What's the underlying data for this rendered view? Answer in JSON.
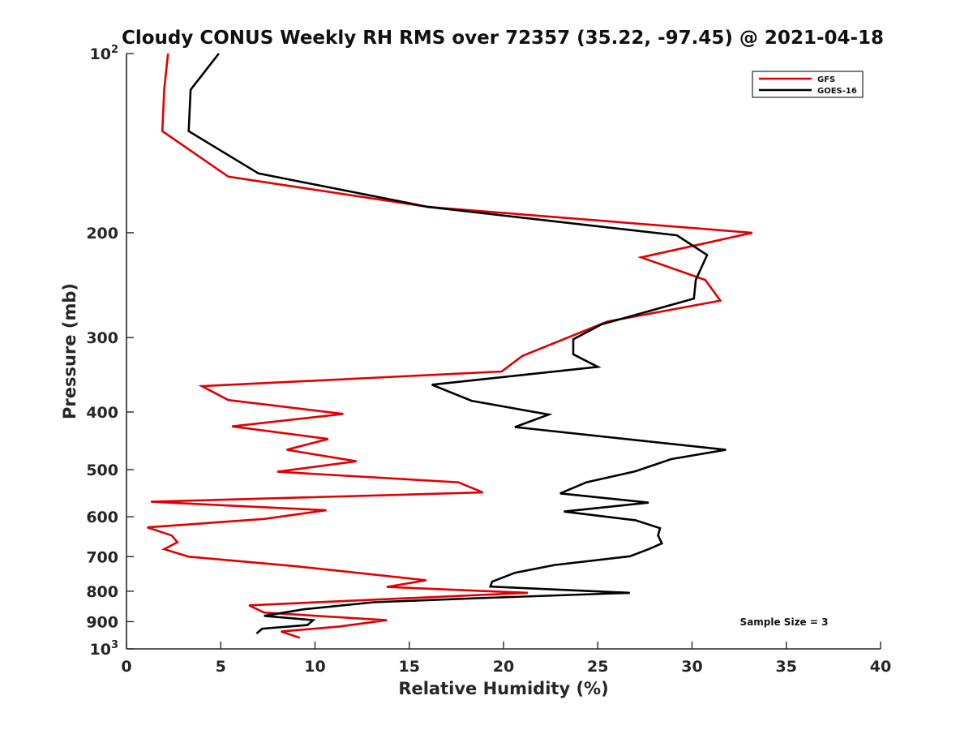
{
  "chart_data": {
    "type": "line",
    "title": "Cloudy CONUS Weekly RH RMS over 72357 (35.22, -97.45) @ 2021-04-18",
    "xlabel": "Relative Humidity (%)",
    "ylabel": "Pressure (mb)",
    "xlim": [
      0,
      40
    ],
    "ylim": [
      100,
      1000
    ],
    "y_scale": "log",
    "y_reversed": true,
    "x_ticks": [
      "0",
      "5",
      "10",
      "15",
      "20",
      "25",
      "30",
      "35",
      "40"
    ],
    "y_ticks": [
      {
        "value": 100,
        "label": "10",
        "sup": "2"
      },
      {
        "value": 200,
        "label": "200"
      },
      {
        "value": 300,
        "label": "300"
      },
      {
        "value": 400,
        "label": "400"
      },
      {
        "value": 500,
        "label": "500"
      },
      {
        "value": 600,
        "label": "600"
      },
      {
        "value": 700,
        "label": "700"
      },
      {
        "value": 800,
        "label": "800"
      },
      {
        "value": 900,
        "label": "900"
      },
      {
        "value": 1000,
        "label": "10",
        "sup": "3"
      }
    ],
    "grid": false,
    "legend_position": "top-right",
    "annotation": "Sample Size = 3",
    "series": [
      {
        "name": "GFS",
        "color": "#e00000",
        "points": [
          {
            "x": 2.2,
            "y": 100
          },
          {
            "x": 2.0,
            "y": 115
          },
          {
            "x": 1.9,
            "y": 135
          },
          {
            "x": 5.4,
            "y": 161
          },
          {
            "x": 16.0,
            "y": 181
          },
          {
            "x": 33.2,
            "y": 200
          },
          {
            "x": 27.3,
            "y": 220
          },
          {
            "x": 30.7,
            "y": 240
          },
          {
            "x": 31.5,
            "y": 260
          },
          {
            "x": 25.5,
            "y": 282
          },
          {
            "x": 21.0,
            "y": 322
          },
          {
            "x": 19.9,
            "y": 342
          },
          {
            "x": 4.0,
            "y": 362
          },
          {
            "x": 5.4,
            "y": 382
          },
          {
            "x": 11.5,
            "y": 403
          },
          {
            "x": 5.6,
            "y": 423
          },
          {
            "x": 10.7,
            "y": 444
          },
          {
            "x": 8.5,
            "y": 463
          },
          {
            "x": 12.2,
            "y": 484
          },
          {
            "x": 8.0,
            "y": 504
          },
          {
            "x": 17.6,
            "y": 525
          },
          {
            "x": 18.9,
            "y": 546
          },
          {
            "x": 1.3,
            "y": 566
          },
          {
            "x": 10.6,
            "y": 585
          },
          {
            "x": 7.3,
            "y": 605
          },
          {
            "x": 1.1,
            "y": 625
          },
          {
            "x": 2.4,
            "y": 645
          },
          {
            "x": 2.7,
            "y": 662
          },
          {
            "x": 2.0,
            "y": 680
          },
          {
            "x": 3.3,
            "y": 700
          },
          {
            "x": 8.9,
            "y": 726
          },
          {
            "x": 15.9,
            "y": 767
          },
          {
            "x": 13.8,
            "y": 787
          },
          {
            "x": 21.3,
            "y": 805
          },
          {
            "x": 12.7,
            "y": 828
          },
          {
            "x": 6.5,
            "y": 845
          },
          {
            "x": 7.3,
            "y": 869
          },
          {
            "x": 13.8,
            "y": 895
          },
          {
            "x": 11.3,
            "y": 917
          },
          {
            "x": 8.2,
            "y": 935
          },
          {
            "x": 9.2,
            "y": 958
          }
        ]
      },
      {
        "name": "GOES-16",
        "color": "#000000",
        "points": [
          {
            "x": 4.9,
            "y": 100
          },
          {
            "x": 3.4,
            "y": 115
          },
          {
            "x": 3.3,
            "y": 135
          },
          {
            "x": 7.0,
            "y": 159
          },
          {
            "x": 16.0,
            "y": 181
          },
          {
            "x": 29.2,
            "y": 202
          },
          {
            "x": 30.8,
            "y": 218
          },
          {
            "x": 30.2,
            "y": 240
          },
          {
            "x": 30.1,
            "y": 258
          },
          {
            "x": 25.2,
            "y": 285
          },
          {
            "x": 23.7,
            "y": 302
          },
          {
            "x": 23.7,
            "y": 320
          },
          {
            "x": 25.0,
            "y": 336
          },
          {
            "x": 16.2,
            "y": 360
          },
          {
            "x": 18.3,
            "y": 383
          },
          {
            "x": 22.4,
            "y": 404
          },
          {
            "x": 20.6,
            "y": 424
          },
          {
            "x": 31.8,
            "y": 463
          },
          {
            "x": 28.9,
            "y": 480
          },
          {
            "x": 27.0,
            "y": 503
          },
          {
            "x": 24.4,
            "y": 525
          },
          {
            "x": 23.0,
            "y": 548
          },
          {
            "x": 27.7,
            "y": 568
          },
          {
            "x": 23.2,
            "y": 588
          },
          {
            "x": 27.0,
            "y": 608
          },
          {
            "x": 28.3,
            "y": 627
          },
          {
            "x": 28.2,
            "y": 645
          },
          {
            "x": 28.4,
            "y": 665
          },
          {
            "x": 27.7,
            "y": 680
          },
          {
            "x": 26.7,
            "y": 699
          },
          {
            "x": 22.7,
            "y": 723
          },
          {
            "x": 20.6,
            "y": 745
          },
          {
            "x": 19.4,
            "y": 771
          },
          {
            "x": 19.3,
            "y": 786
          },
          {
            "x": 26.7,
            "y": 805
          },
          {
            "x": 18.6,
            "y": 822
          },
          {
            "x": 13.1,
            "y": 835
          },
          {
            "x": 9.4,
            "y": 858
          },
          {
            "x": 7.3,
            "y": 880
          },
          {
            "x": 9.9,
            "y": 895
          },
          {
            "x": 9.6,
            "y": 912
          },
          {
            "x": 7.2,
            "y": 925
          },
          {
            "x": 6.9,
            "y": 942
          }
        ]
      }
    ]
  }
}
